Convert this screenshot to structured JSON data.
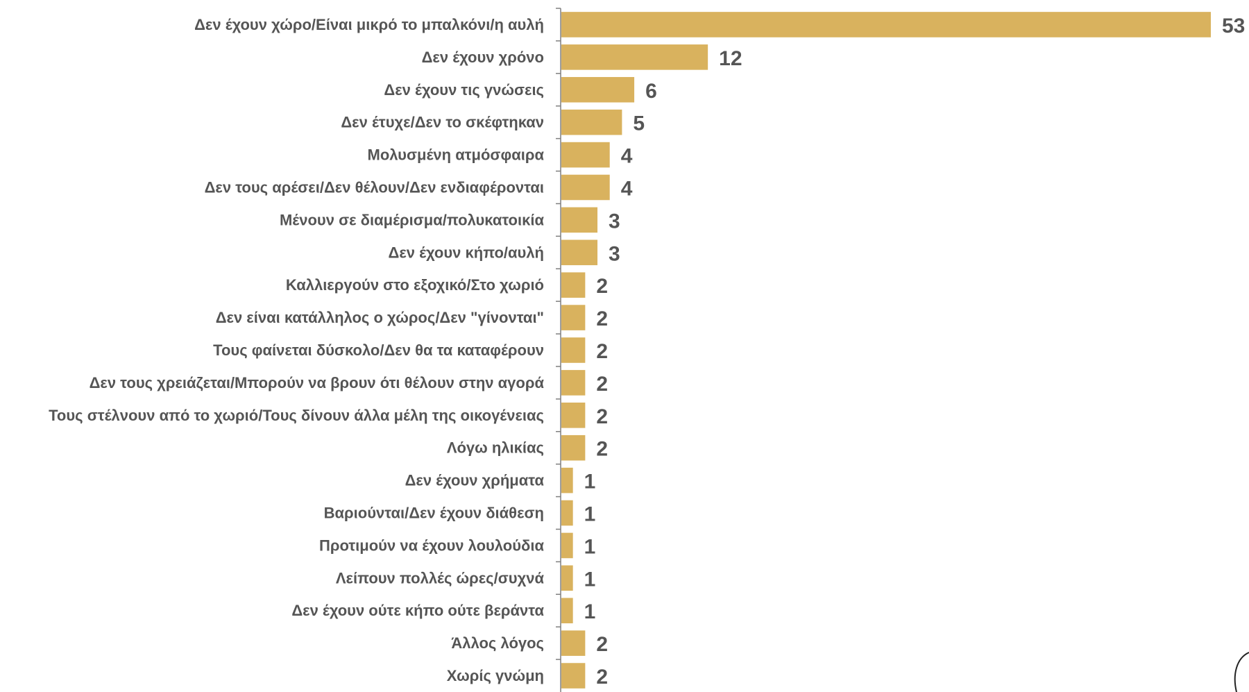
{
  "chart_data": {
    "type": "bar",
    "orientation": "horizontal",
    "title": "",
    "xlabel": "",
    "ylabel": "",
    "grid": false,
    "legend": "none",
    "bar_color": "#D9B25E",
    "label_color": "#555555",
    "axis_color": "#7F7F7F",
    "xlim": [
      0,
      53
    ],
    "categories": [
      "Δεν έχουν χώρο/Είναι μικρό το μπαλκόνι/η αυλή",
      "Δεν έχουν χρόνο",
      "Δεν έχουν τις γνώσεις",
      "Δεν έτυχε/Δεν το σκέφτηκαν",
      "Μολυσμένη ατμόσφαιρα",
      "Δεν τους αρέσει/Δεν θέλουν/Δεν ενδιαφέρονται",
      "Μένουν σε διαμέρισμα/πολυκατοικία",
      "Δεν έχουν κήπο/αυλή",
      "Καλλιεργούν στο εξοχικό/Στο χωριό",
      "Δεν είναι κατάλληλος ο χώρος/Δεν \"γίνονται\"",
      "Τους φαίνεται δύσκολο/Δεν θα τα καταφέρουν",
      "Δεν τους χρειάζεται/Μπορούν να βρουν ότι θέλουν στην αγορά",
      "Τους στέλνουν από το χωριό/Τους δίνουν άλλα μέλη της οικογένειας",
      "Λόγω ηλικίας",
      "Δεν έχουν χρήματα",
      "Βαριούνται/Δεν έχουν διάθεση",
      "Προτιμούν να έχουν λουλούδια",
      "Λείπουν πολλές ώρες/συχνά",
      "Δεν έχουν ούτε κήπο ούτε βεράντα",
      "Άλλος λόγος",
      "Χωρίς γνώμη"
    ],
    "values": [
      53,
      12,
      6,
      5,
      4,
      4,
      3,
      3,
      2,
      2,
      2,
      2,
      2,
      2,
      1,
      1,
      1,
      1,
      1,
      2,
      2
    ]
  }
}
